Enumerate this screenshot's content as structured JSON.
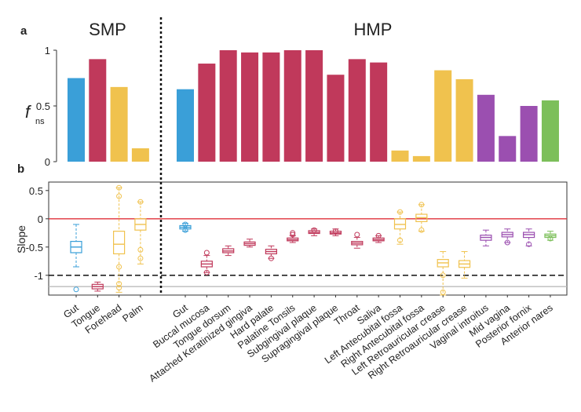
{
  "chart_data": [
    {
      "type": "bar",
      "panel_label": "a",
      "ylabel_main": "f",
      "ylabel_sub": "ns",
      "ylim": [
        0,
        1
      ],
      "yticks": [
        "0",
        "0.5",
        "1"
      ],
      "groups": [
        {
          "name": "SMP",
          "categories": [
            "Gut",
            "Tongue",
            "Forehead",
            "Palm"
          ]
        },
        {
          "name": "HMP",
          "categories": [
            "Gut",
            "Buccal mucosa",
            "Tongue dorsum",
            "Attached Keratinized gingiva",
            "Hard palate",
            "Palatine Tonsils",
            "Subgingival plaque",
            "Supragingival plaque",
            "Throat",
            "Saliva",
            "Left Antecubital fossa",
            "Right Antecubital fossa",
            "Left Retroauricular crease",
            "Right Retroauricular crease",
            "Vaginal introitus",
            "Mid vagina",
            "Posterior fornix",
            "Anterior nares"
          ]
        }
      ],
      "values": [
        0.75,
        0.92,
        0.67,
        0.12,
        0.65,
        0.88,
        1.0,
        0.98,
        0.98,
        1.0,
        1.0,
        0.78,
        0.92,
        0.89,
        0.1,
        0.05,
        0.82,
        0.74,
        0.6,
        0.23,
        0.5,
        0.55
      ],
      "colors": [
        "#3a9fd8",
        "#c0395b",
        "#f0c24e",
        "#f0c24e",
        "#3a9fd8",
        "#c0395b",
        "#c0395b",
        "#c0395b",
        "#c0395b",
        "#c0395b",
        "#c0395b",
        "#c0395b",
        "#c0395b",
        "#c0395b",
        "#f0c24e",
        "#f0c24e",
        "#f0c24e",
        "#f0c24e",
        "#9b4fb0",
        "#9b4fb0",
        "#9b4fb0",
        "#7cbf5a"
      ]
    },
    {
      "type": "box",
      "panel_label": "b",
      "ylabel": "Slope",
      "ylim": [
        -1.35,
        0.65
      ],
      "yticks": [
        "0.5",
        "0",
        "-0.5",
        "-1"
      ],
      "reference_lines": [
        {
          "y": 0,
          "style": "solid",
          "color": "#e0303a"
        },
        {
          "y": -1,
          "style": "dashed",
          "color": "#222222"
        },
        {
          "y": -1.2,
          "style": "solid",
          "color": "#bbbbbb"
        }
      ],
      "categories": [
        "Gut",
        "Tongue",
        "Forehead",
        "Palm",
        "Gut",
        "Buccal mucosa",
        "Tongue dorsum",
        "Attached Keratinized gingiva",
        "Hard palate",
        "Palatine Tonsils",
        "Subgingival plaque",
        "Supragingival plaque",
        "Throat",
        "Saliva",
        "Left Antecubital fossa",
        "Right Antecubital fossa",
        "Left Retroauricular crease",
        "Right Retroauricular crease",
        "Vaginal introitus",
        "Mid vagina",
        "Posterior fornix",
        "Anterior nares"
      ],
      "boxes": [
        {
          "lw": -0.85,
          "q1": -0.6,
          "med": -0.5,
          "q3": -0.4,
          "hw": -0.1,
          "out": [
            -1.25
          ]
        },
        {
          "lw": -1.28,
          "q1": -1.24,
          "med": -1.2,
          "q3": -1.16,
          "hw": -1.12,
          "out": []
        },
        {
          "lw": -1.3,
          "q1": -0.62,
          "med": -0.45,
          "q3": -0.22,
          "hw": 0.55,
          "out": [
            0.55,
            0.4,
            -0.85,
            -1.15,
            -1.22
          ]
        },
        {
          "lw": -0.8,
          "q1": -0.2,
          "med": -0.1,
          "q3": 0.0,
          "hw": 0.3,
          "out": [
            0.3,
            -0.55,
            -0.7
          ]
        },
        {
          "lw": -0.22,
          "q1": -0.18,
          "med": -0.15,
          "q3": -0.12,
          "hw": -0.08,
          "out": [
            -0.2,
            -0.1
          ]
        },
        {
          "lw": -0.95,
          "q1": -0.85,
          "med": -0.8,
          "q3": -0.75,
          "hw": -0.65,
          "out": [
            -0.6,
            -0.95
          ]
        },
        {
          "lw": -0.65,
          "q1": -0.6,
          "med": -0.57,
          "q3": -0.53,
          "hw": -0.48,
          "out": []
        },
        {
          "lw": -0.5,
          "q1": -0.47,
          "med": -0.44,
          "q3": -0.41,
          "hw": -0.36,
          "out": []
        },
        {
          "lw": -0.7,
          "q1": -0.62,
          "med": -0.58,
          "q3": -0.54,
          "hw": -0.48,
          "out": [
            -0.7
          ]
        },
        {
          "lw": -0.42,
          "q1": -0.39,
          "med": -0.37,
          "q3": -0.34,
          "hw": -0.3,
          "out": [
            -0.25,
            -0.28
          ]
        },
        {
          "lw": -0.3,
          "q1": -0.26,
          "med": -0.24,
          "q3": -0.21,
          "hw": -0.18,
          "out": [
            -0.2
          ]
        },
        {
          "lw": -0.3,
          "q1": -0.27,
          "med": -0.25,
          "q3": -0.22,
          "hw": -0.18,
          "out": [
            -0.22
          ]
        },
        {
          "lw": -0.52,
          "q1": -0.46,
          "med": -0.43,
          "q3": -0.4,
          "hw": -0.33,
          "out": [
            -0.28
          ]
        },
        {
          "lw": -0.42,
          "q1": -0.39,
          "med": -0.37,
          "q3": -0.34,
          "hw": -0.3,
          "out": [
            -0.3
          ]
        },
        {
          "lw": -0.45,
          "q1": -0.18,
          "med": -0.1,
          "q3": 0.0,
          "hw": 0.12,
          "out": [
            0.12,
            -0.38
          ]
        },
        {
          "lw": -0.22,
          "q1": -0.05,
          "med": 0.02,
          "q3": 0.08,
          "hw": 0.25,
          "out": [
            0.25,
            -0.2
          ]
        },
        {
          "lw": -1.35,
          "q1": -0.85,
          "med": -0.78,
          "q3": -0.72,
          "hw": -0.58,
          "out": [
            -1.0,
            -1.3
          ]
        },
        {
          "lw": -1.05,
          "q1": -0.86,
          "med": -0.8,
          "q3": -0.74,
          "hw": -0.58,
          "out": []
        },
        {
          "lw": -0.48,
          "q1": -0.38,
          "med": -0.33,
          "q3": -0.29,
          "hw": -0.2,
          "out": []
        },
        {
          "lw": -0.42,
          "q1": -0.32,
          "med": -0.28,
          "q3": -0.24,
          "hw": -0.18,
          "out": [
            -0.42
          ]
        },
        {
          "lw": -0.48,
          "q1": -0.33,
          "med": -0.28,
          "q3": -0.24,
          "hw": -0.18,
          "out": [
            -0.45
          ]
        },
        {
          "lw": -0.38,
          "q1": -0.33,
          "med": -0.3,
          "q3": -0.27,
          "hw": -0.22,
          "out": [
            -0.35
          ]
        }
      ]
    }
  ]
}
